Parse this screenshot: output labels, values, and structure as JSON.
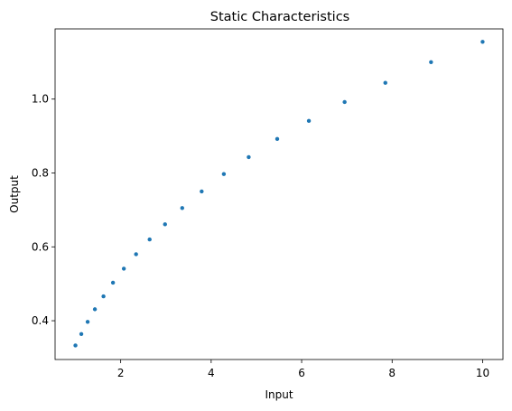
{
  "chart_data": {
    "type": "scatter",
    "title": "Static Characteristics",
    "xlabel": "Input",
    "ylabel": "Output",
    "xlim": [
      0.55,
      10.45
    ],
    "ylim": [
      0.295,
      1.19
    ],
    "xticks": [
      2,
      4,
      6,
      8,
      10
    ],
    "xtick_labels": [
      "2",
      "4",
      "6",
      "8",
      "10"
    ],
    "yticks": [
      0.4,
      0.6,
      0.8,
      1.0
    ],
    "ytick_labels": [
      "0.4",
      "0.6",
      "0.8",
      "1.0"
    ],
    "point_color": "#1f77b4",
    "series": [
      {
        "name": "Output",
        "x": [
          1.0,
          1.13,
          1.27,
          1.43,
          1.62,
          1.83,
          2.07,
          2.34,
          2.64,
          2.98,
          3.36,
          3.79,
          4.28,
          4.83,
          5.46,
          6.16,
          6.95,
          7.85,
          8.86,
          10.0
        ],
        "y": [
          0.333,
          0.364,
          0.397,
          0.431,
          0.466,
          0.503,
          0.541,
          0.58,
          0.62,
          0.661,
          0.705,
          0.75,
          0.797,
          0.843,
          0.892,
          0.941,
          0.992,
          1.044,
          1.1,
          1.155
        ]
      }
    ]
  }
}
